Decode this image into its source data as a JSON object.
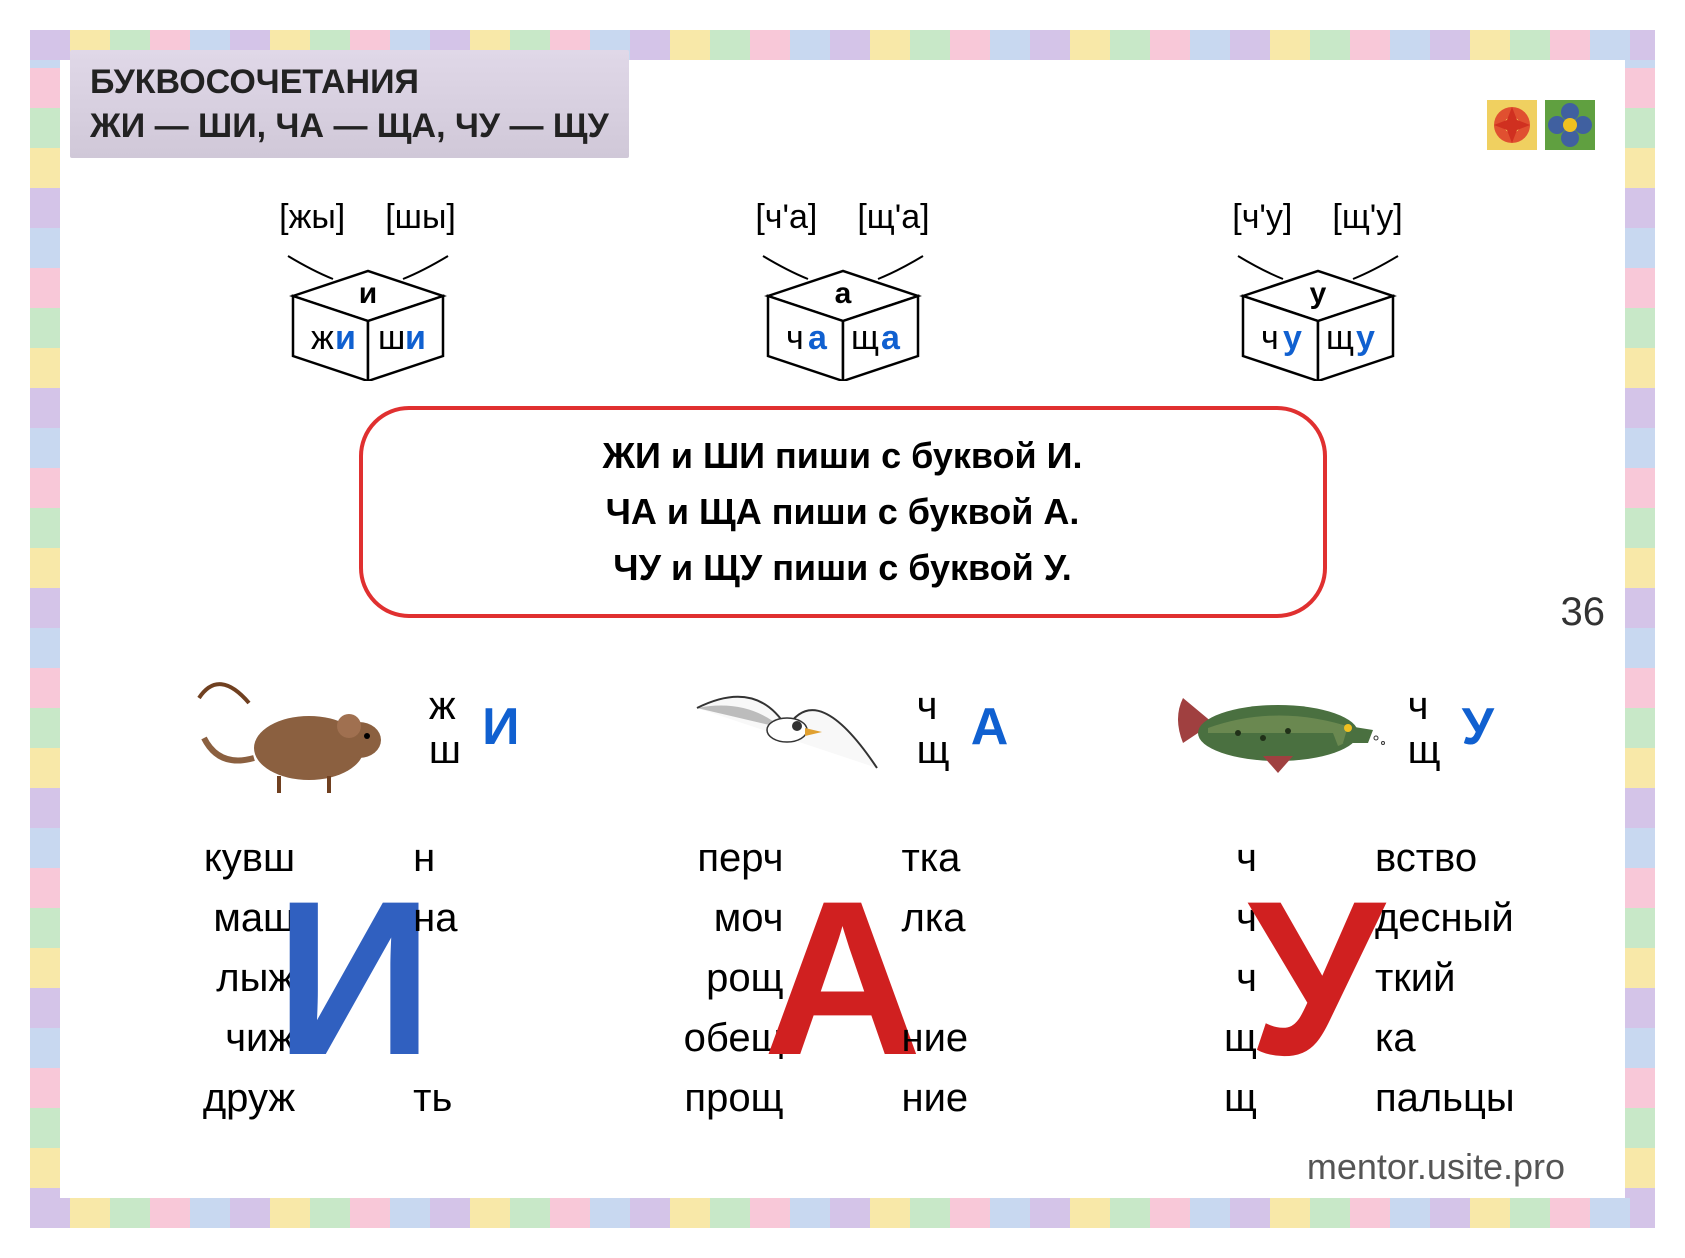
{
  "title_line1": "БУКВОСОЧЕТАНИЯ",
  "title_line2": "ЖИ — ШИ,  ЧА — ЩА,  ЧУ — ЩУ",
  "page_number": "36",
  "watermark": "mentor.usite.pro",
  "colors": {
    "accent_blue": "#1060d0",
    "accent_red": "#d02020",
    "rule_border": "#e03030",
    "title_bg": "#d8d0e0",
    "letter_i": "#3060c0",
    "letter_a": "#d02020",
    "letter_u": "#d02020"
  },
  "cubes": [
    {
      "brackets": [
        "[жы]",
        "[шы]"
      ],
      "top": "и",
      "left_black": "ж",
      "left_blue": "и",
      "right_black": "ш",
      "right_blue": "и"
    },
    {
      "brackets": [
        "[ч'а]",
        "[щ'а]"
      ],
      "top": "а",
      "left_black": "ч",
      "left_blue": "а",
      "right_black": "щ",
      "right_blue": "а"
    },
    {
      "brackets": [
        "[ч'у]",
        "[щ'у]"
      ],
      "top": "у",
      "left_black": "ч",
      "left_blue": "у",
      "right_black": "щ",
      "right_blue": "у"
    }
  ],
  "rules": [
    "ЖИ  и  ШИ  пиши  с  буквой  И.",
    "ЧА  и  ЩА  пиши  с  буквой  А.",
    "ЧУ  и  ЩУ  пиши  с  буквой  У."
  ],
  "groups": [
    {
      "animal": "mouse",
      "stack": [
        "ж",
        "ш"
      ],
      "big": "И",
      "big_color": "#1060d0",
      "words": [
        {
          "left": "кувш",
          "right": "н"
        },
        {
          "left": "маш",
          "right": "на"
        },
        {
          "left": "лыж",
          "right": ""
        },
        {
          "left": "чиж",
          "right": ""
        },
        {
          "left": "друж",
          "right": "ть"
        }
      ],
      "big_letter": "И",
      "big_letter_color": "#3060c0"
    },
    {
      "animal": "seagull",
      "stack": [
        "ч",
        "щ"
      ],
      "big": "А",
      "big_color": "#1060d0",
      "words": [
        {
          "left": "перч",
          "right": "тка"
        },
        {
          "left": "моч",
          "right": "лка"
        },
        {
          "left": "рощ",
          "right": ""
        },
        {
          "left": "обещ",
          "right": "ние"
        },
        {
          "left": "прощ",
          "right": "ние"
        }
      ],
      "big_letter": "А",
      "big_letter_color": "#d02020"
    },
    {
      "animal": "pike",
      "stack": [
        "ч",
        "щ"
      ],
      "big": "У",
      "big_color": "#1060d0",
      "words": [
        {
          "left": "ч",
          "right": "вство"
        },
        {
          "left": "ч",
          "right": "десный"
        },
        {
          "left": "ч",
          "right": "ткий"
        },
        {
          "left": "щ",
          "right": "ка"
        },
        {
          "left": "щ",
          "right": "пальцы"
        }
      ],
      "big_letter": "У",
      "big_letter_color": "#d02020"
    }
  ]
}
